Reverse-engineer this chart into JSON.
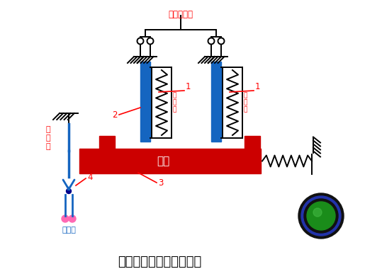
{
  "title": "热继电器工作原理示意图",
  "title_fontsize": 13,
  "bg_color": "#ffffff",
  "red": "#ff0000",
  "black": "#000000",
  "blue": "#1565c0",
  "dark_red": "#cc0000",
  "pink": "#ff69b4",
  "text_jie_dianyuan": "接\n电\n源",
  "text_jie_dianji": "接电机",
  "text_daobao": "导板",
  "text_re_yuanjian": "热\n元\n件",
  "text_dingzi": "接电机定子",
  "lw": 1.4,
  "lw2": 2.0,
  "fig_w": 5.39,
  "fig_h": 3.8,
  "dpi": 100
}
